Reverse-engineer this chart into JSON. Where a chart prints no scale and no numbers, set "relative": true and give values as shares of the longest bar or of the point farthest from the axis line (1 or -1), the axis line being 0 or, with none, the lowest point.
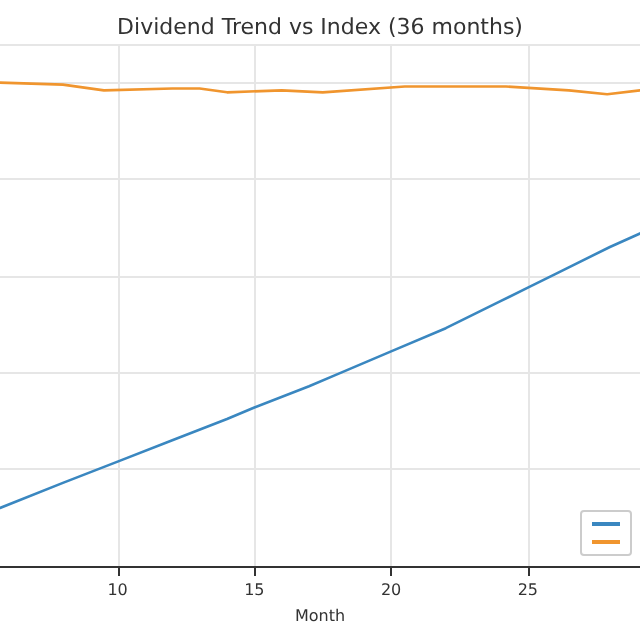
{
  "chart_data": {
    "type": "line",
    "title": "Dividend Trend vs Index (36 months)",
    "xlabel": "Month",
    "relative": true,
    "xlim": [
      5.7,
      29.1
    ],
    "xticks": [
      10,
      15,
      20,
      25
    ],
    "grid": true,
    "marker": "none",
    "line_style": "solid",
    "series": [
      {
        "color": "#3a87c0",
        "x": [
          5.7,
          8,
          10,
          12,
          14,
          15,
          17,
          18,
          20,
          22,
          24,
          25,
          26,
          28,
          29.1
        ],
        "values": [
          0.12,
          0.172,
          0.216,
          0.26,
          0.304,
          0.328,
          0.372,
          0.396,
          0.444,
          0.492,
          0.548,
          0.576,
          0.604,
          0.66,
          0.688
        ]
      },
      {
        "color": "#f0952e",
        "x": [
          5.7,
          8,
          9.5,
          12,
          13,
          14,
          16,
          17.5,
          20.5,
          24.2,
          26.5,
          27.9,
          29.1
        ],
        "values": [
          1.0,
          0.996,
          0.984,
          0.988,
          0.988,
          0.98,
          0.984,
          0.98,
          0.992,
          0.992,
          0.984,
          0.976,
          0.984
        ]
      }
    ]
  }
}
